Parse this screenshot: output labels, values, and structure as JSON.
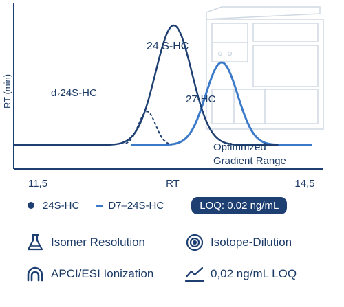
{
  "chart_data": {
    "type": "line",
    "ylabel": "RT (min)",
    "xlabel": "RT",
    "x_tick_labels": [
      "11,5",
      "14,5"
    ],
    "xlim": [
      11.5,
      14.5
    ],
    "grid": false,
    "series": [
      {
        "name": "24S-HC",
        "style": "solid",
        "color": "#1e3f72",
        "peak_x": 13.0,
        "peak_height": 1.0,
        "width": 0.17
      },
      {
        "name": "D7–24S-HC",
        "style": "solid",
        "color": "#3b79c9",
        "peak_x": 13.45,
        "peak_height": 0.69,
        "width": 0.15
      },
      {
        "name": "d7 24S-HC",
        "style": "dashed",
        "color": "#1e3f72",
        "peak_x": 12.75,
        "peak_height": 0.28,
        "width": 0.08
      }
    ],
    "annotations": {
      "peak_24s": "24 S-HC",
      "peak_d7": "d₇24S-HC",
      "peak_27": "27-HC",
      "range_line1": "Optimmzed",
      "range_line2": "Gradient Range"
    }
  },
  "legend": {
    "item1": "24S-HC",
    "item2": "D7–24S-HC",
    "loq_badge": "LOQ: 0.02 ng/mL"
  },
  "features": {
    "isomer": "Isomer Resolution",
    "isotope": "Isotope-Dilution",
    "ionization": "APCI/ESI Ionization",
    "loq": "0,02 ng/mL LOQ"
  },
  "colors": {
    "navy": "#1e3f72",
    "blue": "#3b79c9",
    "instrument": "#cfd8e3"
  },
  "icons": [
    "flask-icon",
    "target-icon",
    "magnet-arc-icon",
    "trend-line-icon"
  ]
}
